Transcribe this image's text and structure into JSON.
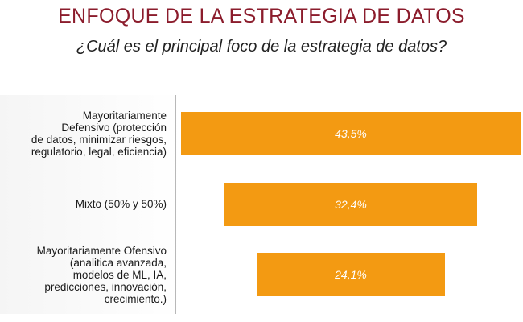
{
  "header": {
    "title": "ENFOQUE DE LA ESTRATEGIA DE DATOS",
    "subtitle": "¿Cuál es el principal foco de la estrategia de datos?"
  },
  "colors": {
    "bar": "#f39a12",
    "title": "#8b1c2c"
  },
  "chart_data": {
    "type": "bar",
    "orientation": "horizontal",
    "title": "ENFOQUE DE LA ESTRATEGIA DE DATOS",
    "subtitle": "¿Cuál es el principal foco de la estrategia de datos?",
    "categories": [
      "Mayoritariamente\nDefensivo (protección\nde datos, minimizar riesgos,\nregulatorio, legal, eficiencia)",
      "Mixto (50% y 50%)",
      "Mayoritariamente Ofensivo\n(analitica avanzada,\nmodelos de ML, IA,\npredicciones, innovación,\ncrecimiento.)"
    ],
    "values": [
      43.5,
      32.4,
      24.1
    ],
    "data_labels": [
      "43,5%",
      "32,4%",
      "24,1%"
    ],
    "bar_alignment": "center",
    "grid": false,
    "legend": "none"
  }
}
